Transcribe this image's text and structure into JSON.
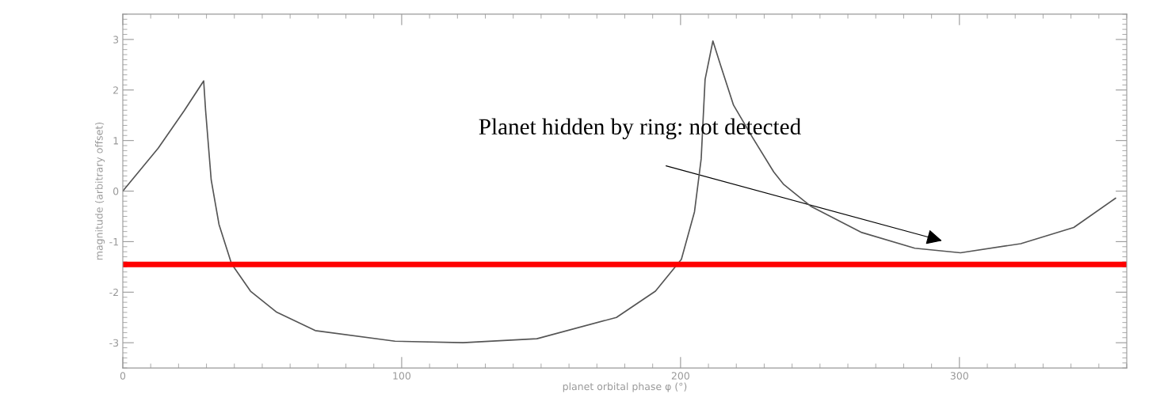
{
  "chart_data": {
    "type": "line",
    "xlabel": "planet orbital phase φ (°)",
    "ylabel": "magnitude (arbitrary offset)",
    "xlim": [
      0,
      360
    ],
    "ylim": [
      -3.5,
      3.5
    ],
    "xticks": [
      0,
      100,
      200,
      300
    ],
    "yticks": [
      -3,
      -2,
      -1,
      0,
      1,
      2,
      3
    ],
    "x": [
      0,
      12.7,
      22,
      29,
      29.7,
      31.7,
      34.5,
      39,
      45.8,
      55,
      69,
      97.6,
      122,
      148.5,
      177,
      191,
      200.3,
      205,
      207.4,
      208.8,
      211.6,
      214.4,
      219,
      225.7,
      233.4,
      237,
      246.7,
      265,
      284,
      300.4,
      322,
      341,
      356
    ],
    "series": [
      {
        "color": "#555555",
        "values": [
          0,
          0.85,
          1.59,
          2.18,
          1.59,
          0.22,
          -0.66,
          -1.44,
          -1.98,
          -2.39,
          -2.76,
          -2.97,
          -3.0,
          -2.92,
          -2.5,
          -1.98,
          -1.35,
          -0.41,
          0.64,
          2.21,
          2.97,
          2.48,
          1.7,
          1.07,
          0.38,
          0.13,
          -0.3,
          -0.82,
          -1.13,
          -1.22,
          -1.04,
          -0.72,
          -0.14
        ]
      }
    ],
    "ref_lines": [
      {
        "axis": "y",
        "value": -1.45,
        "color": "#ff0000"
      }
    ],
    "annotations": [
      "Planet hidden by ring: not detected"
    ],
    "grid": false,
    "legend": false,
    "marker": "none",
    "line_style": "solid"
  }
}
